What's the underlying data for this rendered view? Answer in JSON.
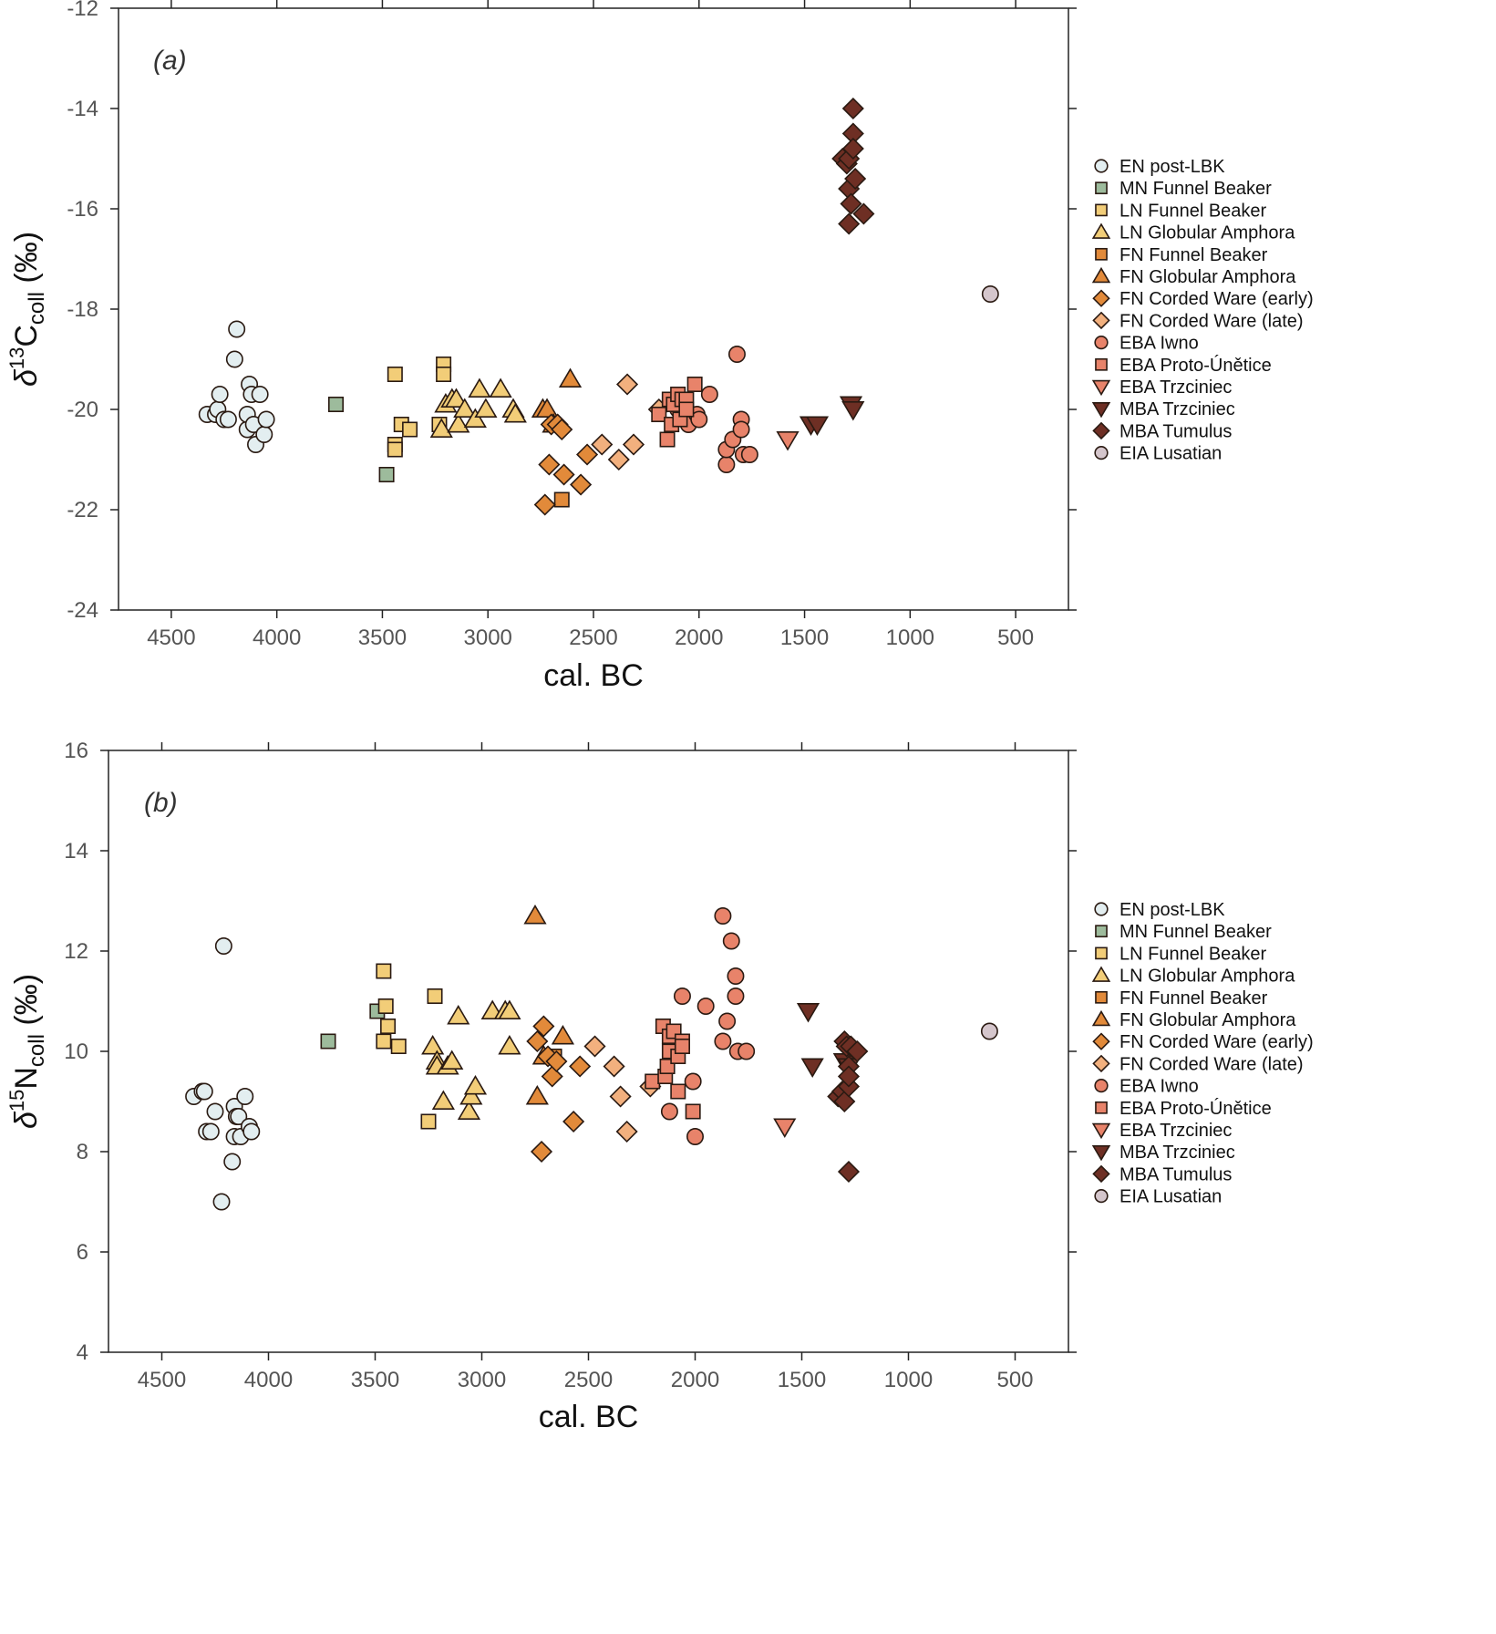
{
  "chart_data": [
    {
      "type": "scatter",
      "panel_label": "(a)",
      "title": "",
      "xlabel": "cal. BC",
      "ylabel": "δ13Ccoll (‰)",
      "ylabel_parts": {
        "delta": "δ",
        "sup": "13",
        "main": "C",
        "sub": "coll",
        "unit": " (‰)"
      },
      "xlim": [
        4750,
        250
      ],
      "ylim": [
        -24,
        -12
      ],
      "x_ticks": [
        4500,
        4000,
        3500,
        3000,
        2500,
        2000,
        1500,
        1000,
        500
      ],
      "y_ticks": [
        -24,
        -22,
        -20,
        -18,
        -16,
        -14,
        -12
      ],
      "grid": false,
      "legend_position": "right",
      "series": [
        {
          "name": "EN post-LBK",
          "marker": "circle",
          "color": "#e3eef0",
          "points": [
            [
              4330,
              -20.1
            ],
            [
              4290,
              -20.1
            ],
            [
              4280,
              -20.0
            ],
            [
              4270,
              -19.7
            ],
            [
              4250,
              -20.2
            ],
            [
              4230,
              -20.2
            ],
            [
              4200,
              -19.0
            ],
            [
              4190,
              -18.4
            ],
            [
              4140,
              -20.4
            ],
            [
              4140,
              -20.1
            ],
            [
              4130,
              -19.5
            ],
            [
              4120,
              -19.7
            ],
            [
              4110,
              -20.3
            ],
            [
              4100,
              -20.7
            ],
            [
              4080,
              -19.7
            ],
            [
              4060,
              -20.5
            ],
            [
              4050,
              -20.2
            ]
          ]
        },
        {
          "name": "MN Funnel Beaker",
          "marker": "square",
          "color": "#9dbb9c",
          "points": [
            [
              3720,
              -19.9
            ],
            [
              3480,
              -21.3
            ]
          ]
        },
        {
          "name": "LN Funnel Beaker",
          "marker": "square",
          "color": "#f2cd78",
          "points": [
            [
              3440,
              -19.3
            ],
            [
              3440,
              -20.7
            ],
            [
              3440,
              -20.8
            ],
            [
              3410,
              -20.3
            ],
            [
              3370,
              -20.4
            ],
            [
              3230,
              -20.3
            ],
            [
              3210,
              -19.1
            ],
            [
              3210,
              -19.3
            ]
          ]
        },
        {
          "name": "LN Globular Amphora",
          "marker": "triangle-up",
          "color": "#f2cd78",
          "points": [
            [
              3220,
              -20.4
            ],
            [
              3200,
              -19.9
            ],
            [
              3170,
              -19.8
            ],
            [
              3150,
              -19.8
            ],
            [
              3140,
              -20.3
            ],
            [
              3110,
              -20.0
            ],
            [
              3060,
              -20.2
            ],
            [
              3040,
              -19.6
            ],
            [
              3010,
              -20.0
            ],
            [
              2940,
              -19.6
            ],
            [
              2880,
              -20.0
            ],
            [
              2870,
              -20.1
            ]
          ]
        },
        {
          "name": "FN Funnel Beaker",
          "marker": "square",
          "color": "#e28a3a",
          "points": [
            [
              2650,
              -21.8
            ]
          ]
        },
        {
          "name": "FN Globular Amphora",
          "marker": "triangle-up",
          "color": "#e28a3a",
          "points": [
            [
              2740,
              -20.0
            ],
            [
              2720,
              -20.0
            ],
            [
              2690,
              -20.3
            ],
            [
              2610,
              -19.4
            ]
          ]
        },
        {
          "name": "FN Corded Ware (early)",
          "marker": "diamond",
          "color": "#e28a3a",
          "points": [
            [
              2730,
              -21.9
            ],
            [
              2710,
              -21.1
            ],
            [
              2700,
              -20.3
            ],
            [
              2670,
              -20.3
            ],
            [
              2650,
              -20.4
            ],
            [
              2640,
              -21.3
            ],
            [
              2560,
              -21.5
            ],
            [
              2530,
              -20.9
            ]
          ]
        },
        {
          "name": "FN Corded Ware (late)",
          "marker": "diamond",
          "color": "#f2b07e",
          "points": [
            [
              2460,
              -20.7
            ],
            [
              2380,
              -21.0
            ],
            [
              2340,
              -19.5
            ],
            [
              2310,
              -20.7
            ],
            [
              2190,
              -20.0
            ]
          ]
        },
        {
          "name": "EBA Iwno",
          "marker": "circle",
          "color": "#e8836a",
          "points": [
            [
              2100,
              -20.0
            ],
            [
              2060,
              -20.2
            ],
            [
              2050,
              -20.3
            ],
            [
              2010,
              -20.1
            ],
            [
              2000,
              -20.2
            ],
            [
              1950,
              -19.7
            ],
            [
              1870,
              -21.1
            ],
            [
              1870,
              -20.8
            ],
            [
              1840,
              -20.6
            ],
            [
              1820,
              -18.9
            ],
            [
              1800,
              -20.2
            ],
            [
              1800,
              -20.4
            ],
            [
              1790,
              -20.9
            ],
            [
              1760,
              -20.9
            ]
          ]
        },
        {
          "name": "EBA Proto-Únětice",
          "marker": "square",
          "color": "#e8836a",
          "points": [
            [
              2190,
              -20.1
            ],
            [
              2150,
              -20.6
            ],
            [
              2140,
              -19.8
            ],
            [
              2130,
              -20.3
            ],
            [
              2120,
              -19.9
            ],
            [
              2100,
              -19.7
            ],
            [
              2090,
              -20.2
            ],
            [
              2080,
              -19.8
            ],
            [
              2060,
              -19.8
            ],
            [
              2060,
              -20.0
            ],
            [
              2020,
              -19.5
            ]
          ]
        },
        {
          "name": "EBA Trzciniec",
          "marker": "triangle-down",
          "color": "#e8836a",
          "points": [
            [
              1580,
              -20.6
            ]
          ]
        },
        {
          "name": "MBA Trzciniec",
          "marker": "triangle-down",
          "color": "#6e2f24",
          "points": [
            [
              1470,
              -20.3
            ],
            [
              1440,
              -20.3
            ],
            [
              1280,
              -19.9
            ],
            [
              1270,
              -20.0
            ]
          ]
        },
        {
          "name": "MBA Tumulus",
          "marker": "diamond",
          "color": "#6e2f24",
          "points": [
            [
              1320,
              -15.0
            ],
            [
              1300,
              -15.1
            ],
            [
              1290,
              -15.0
            ],
            [
              1290,
              -15.6
            ],
            [
              1290,
              -16.3
            ],
            [
              1280,
              -15.9
            ],
            [
              1270,
              -14.0
            ],
            [
              1270,
              -14.5
            ],
            [
              1270,
              -14.8
            ],
            [
              1260,
              -15.4
            ],
            [
              1220,
              -16.1
            ]
          ]
        },
        {
          "name": "EIA Lusatian",
          "marker": "circle",
          "color": "#d5c6cc",
          "points": [
            [
              620,
              -17.7
            ]
          ]
        }
      ]
    },
    {
      "type": "scatter",
      "panel_label": "(b)",
      "title": "",
      "xlabel": "cal. BC",
      "ylabel": "δ15Ncoll (‰)",
      "ylabel_parts": {
        "delta": "δ",
        "sup": "15",
        "main": "N",
        "sub": "coll",
        "unit": " (‰)"
      },
      "xlim": [
        4750,
        250
      ],
      "ylim": [
        4,
        16
      ],
      "x_ticks": [
        4500,
        4000,
        3500,
        3000,
        2500,
        2000,
        1500,
        1000,
        500
      ],
      "y_ticks": [
        4,
        6,
        8,
        10,
        12,
        14,
        16
      ],
      "grid": false,
      "legend_position": "right",
      "series": [
        {
          "name": "EN post-LBK",
          "marker": "circle",
          "color": "#e3eef0",
          "points": [
            [
              4350,
              9.1
            ],
            [
              4310,
              9.2
            ],
            [
              4300,
              9.2
            ],
            [
              4290,
              8.4
            ],
            [
              4270,
              8.4
            ],
            [
              4250,
              8.8
            ],
            [
              4220,
              7.0
            ],
            [
              4210,
              12.1
            ],
            [
              4170,
              7.8
            ],
            [
              4160,
              8.3
            ],
            [
              4160,
              8.9
            ],
            [
              4150,
              8.7
            ],
            [
              4140,
              8.7
            ],
            [
              4130,
              8.3
            ],
            [
              4110,
              9.1
            ],
            [
              4090,
              8.5
            ],
            [
              4080,
              8.4
            ]
          ]
        },
        {
          "name": "MN Funnel Beaker",
          "marker": "square",
          "color": "#9dbb9c",
          "points": [
            [
              3720,
              10.2
            ],
            [
              3490,
              10.8
            ]
          ]
        },
        {
          "name": "LN Funnel Beaker",
          "marker": "square",
          "color": "#f2cd78",
          "points": [
            [
              3460,
              11.6
            ],
            [
              3460,
              10.2
            ],
            [
              3450,
              10.9
            ],
            [
              3440,
              10.5
            ],
            [
              3390,
              10.1
            ],
            [
              3250,
              8.6
            ],
            [
              3220,
              11.1
            ]
          ]
        },
        {
          "name": "LN Globular Amphora",
          "marker": "triangle-up",
          "color": "#f2cd78",
          "points": [
            [
              3230,
              10.1
            ],
            [
              3210,
              9.8
            ],
            [
              3210,
              9.7
            ],
            [
              3180,
              9.0
            ],
            [
              3160,
              9.7
            ],
            [
              3140,
              9.8
            ],
            [
              3110,
              10.7
            ],
            [
              3060,
              8.8
            ],
            [
              3050,
              9.1
            ],
            [
              3030,
              9.3
            ],
            [
              2950,
              10.8
            ],
            [
              2890,
              10.8
            ],
            [
              2870,
              10.8
            ],
            [
              2870,
              10.1
            ]
          ]
        },
        {
          "name": "FN Funnel Beaker",
          "marker": "square",
          "color": "#e28a3a",
          "points": [
            [
              2660,
              9.9
            ]
          ]
        },
        {
          "name": "FN Globular Amphora",
          "marker": "triangle-up",
          "color": "#e28a3a",
          "points": [
            [
              2750,
              12.7
            ],
            [
              2740,
              9.1
            ],
            [
              2710,
              9.9
            ],
            [
              2620,
              10.3
            ]
          ]
        },
        {
          "name": "FN Corded Ware (early)",
          "marker": "diamond",
          "color": "#e28a3a",
          "points": [
            [
              2740,
              10.2
            ],
            [
              2720,
              8.0
            ],
            [
              2710,
              10.5
            ],
            [
              2690,
              9.9
            ],
            [
              2670,
              9.5
            ],
            [
              2650,
              9.8
            ],
            [
              2570,
              8.6
            ],
            [
              2540,
              9.7
            ]
          ]
        },
        {
          "name": "FN Corded Ware (late)",
          "marker": "diamond",
          "color": "#f2b07e",
          "points": [
            [
              2470,
              10.1
            ],
            [
              2380,
              9.7
            ],
            [
              2350,
              9.1
            ],
            [
              2320,
              8.4
            ],
            [
              2210,
              9.3
            ]
          ]
        },
        {
          "name": "EBA Iwno",
          "marker": "circle",
          "color": "#e8836a",
          "points": [
            [
              2120,
              8.8
            ],
            [
              2060,
              11.1
            ],
            [
              2010,
              9.4
            ],
            [
              2000,
              8.3
            ],
            [
              1950,
              10.9
            ],
            [
              1870,
              10.2
            ],
            [
              1870,
              12.7
            ],
            [
              1850,
              10.6
            ],
            [
              1830,
              12.2
            ],
            [
              1810,
              11.5
            ],
            [
              1810,
              11.1
            ],
            [
              1800,
              10.0
            ],
            [
              1760,
              10.0
            ]
          ]
        },
        {
          "name": "EBA Proto-Únětice",
          "marker": "square",
          "color": "#e8836a",
          "points": [
            [
              2200,
              9.4
            ],
            [
              2150,
              10.5
            ],
            [
              2140,
              9.5
            ],
            [
              2130,
              9.7
            ],
            [
              2120,
              10.0
            ],
            [
              2120,
              10.3
            ],
            [
              2100,
              10.4
            ],
            [
              2080,
              9.9
            ],
            [
              2080,
              9.2
            ],
            [
              2060,
              10.2
            ],
            [
              2060,
              10.1
            ],
            [
              2010,
              8.8
            ]
          ]
        },
        {
          "name": "EBA Trzciniec",
          "marker": "triangle-down",
          "color": "#e8836a",
          "points": [
            [
              1580,
              8.5
            ]
          ]
        },
        {
          "name": "MBA Trzciniec",
          "marker": "triangle-down",
          "color": "#6e2f24",
          "points": [
            [
              1470,
              10.8
            ],
            [
              1450,
              9.7
            ],
            [
              1300,
              9.8
            ],
            [
              1280,
              9.7
            ]
          ]
        },
        {
          "name": "MBA Tumulus",
          "marker": "diamond",
          "color": "#6e2f24",
          "points": [
            [
              1330,
              9.1
            ],
            [
              1310,
              9.2
            ],
            [
              1300,
              9.0
            ],
            [
              1300,
              10.2
            ],
            [
              1290,
              10.1
            ],
            [
              1280,
              9.7
            ],
            [
              1280,
              9.3
            ],
            [
              1280,
              9.5
            ],
            [
              1280,
              7.6
            ],
            [
              1270,
              10.1
            ],
            [
              1240,
              10.0
            ]
          ]
        },
        {
          "name": "EIA Lusatian",
          "marker": "circle",
          "color": "#d5c6cc",
          "points": [
            [
              620,
              10.4
            ]
          ]
        }
      ]
    }
  ]
}
